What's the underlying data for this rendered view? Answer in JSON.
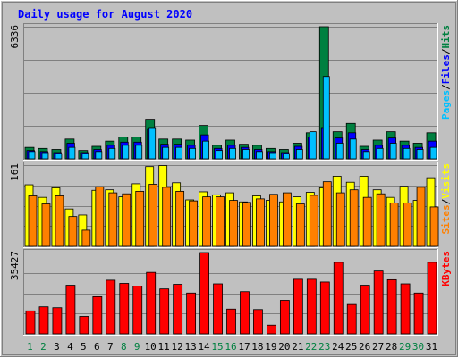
{
  "chart_data": {
    "type": "bar",
    "title": "Daily usage for August 2020",
    "categories": [
      "1",
      "2",
      "3",
      "4",
      "5",
      "6",
      "7",
      "8",
      "9",
      "10",
      "11",
      "12",
      "13",
      "14",
      "15",
      "16",
      "17",
      "18",
      "19",
      "20",
      "21",
      "22",
      "23",
      "24",
      "25",
      "26",
      "27",
      "28",
      "29",
      "30",
      "31"
    ],
    "weekend_days": [
      "1",
      "2",
      "8",
      "9",
      "15",
      "16",
      "22",
      "23",
      "29",
      "30"
    ],
    "colors": {
      "hits": "#008040",
      "files": "#0000ff",
      "pages": "#00c0ff",
      "visits": "#ffff00",
      "sites": "#ff8000",
      "kbytes": "#ff0000",
      "title": "#0000ff",
      "weekend_label": "#008040",
      "weekday_label": "#000000",
      "plot_background": "#c0c0c0"
    },
    "panels": [
      {
        "id": "hits",
        "ymax_label": "6336",
        "ylim": [
          0,
          6336
        ],
        "series_labels": [
          "Pages",
          "/",
          "Files",
          "/",
          "Hits"
        ],
        "series": [
          {
            "name": "Hits",
            "values": [
              550,
              500,
              450,
              950,
              400,
              600,
              850,
              1050,
              1050,
              1900,
              950,
              950,
              900,
              1600,
              650,
              900,
              700,
              650,
              500,
              450,
              750,
              1250,
              6336,
              1300,
              1700,
              600,
              900,
              1300,
              850,
              750,
              1250
            ]
          },
          {
            "name": "Files",
            "values": [
              400,
              350,
              300,
              750,
              300,
              450,
              650,
              800,
              800,
              1450,
              700,
              700,
              650,
              1150,
              500,
              650,
              550,
              450,
              350,
              300,
              600,
              1050,
              1500,
              1000,
              1250,
              450,
              650,
              1000,
              650,
              550,
              850
            ]
          },
          {
            "name": "Pages",
            "values": [
              350,
              300,
              250,
              550,
              250,
              350,
              500,
              650,
              650,
              1500,
              550,
              550,
              500,
              850,
              400,
              500,
              450,
              350,
              300,
              250,
              450,
              1300,
              3950,
              750,
              950,
              350,
              500,
              750,
              500,
              450,
              550
            ]
          }
        ]
      },
      {
        "id": "visits",
        "ymax_label": "161",
        "ylim": [
          0,
          161
        ],
        "series_labels": [
          "Sites",
          "/",
          "Visits"
        ],
        "series": [
          {
            "name": "Visits",
            "values": [
              122,
              97,
              116,
              74,
              62,
              111,
              112,
              98,
              124,
              158,
              160,
              126,
              92,
              108,
              102,
              106,
              88,
              100,
              91,
              88,
              98,
              107,
              116,
              139,
              127,
              139,
              112,
              97,
              119,
              91,
              136
            ]
          },
          {
            "name": "Sites",
            "values": [
              100,
              84,
              100,
              59,
              32,
              118,
              106,
              104,
              109,
              123,
              117,
              109,
              90,
              98,
              98,
              91,
              87,
              94,
              103,
              106,
              84,
              101,
              128,
              106,
              112,
              97,
              104,
              86,
              86,
              117,
              78
            ]
          }
        ]
      },
      {
        "id": "kbytes",
        "ymax_label": "35427",
        "ylim": [
          0,
          35427
        ],
        "series_labels": [
          "KBytes"
        ],
        "series": [
          {
            "name": "KBytes",
            "values": [
              10000,
              11800,
              11400,
              21200,
              7600,
              16200,
              23400,
              22000,
              20800,
              26800,
              19600,
              21600,
              17800,
              35427,
              21800,
              10800,
              18400,
              10600,
              3800,
              14600,
              23800,
              23800,
              22600,
              31200,
              12800,
              21200,
              27400,
              23600,
              21800,
              17800,
              31200
            ]
          }
        ]
      }
    ]
  }
}
